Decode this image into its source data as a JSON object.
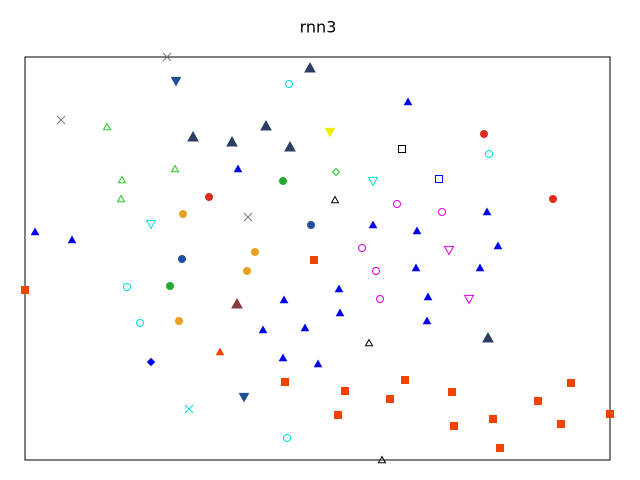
{
  "chart_data": {
    "type": "scatter",
    "title": "rnn3",
    "xlim": [
      0,
      585
    ],
    "ylim": [
      0,
      403
    ],
    "series": [
      {
        "color": "#777777",
        "marker": "x",
        "filled": false,
        "x": [
          142,
          36,
          223
        ],
        "y": [
          403,
          340,
          243
        ]
      },
      {
        "color": "#00dddd",
        "marker": "x",
        "filled": false,
        "x": [
          164
        ],
        "y": [
          51
        ]
      },
      {
        "color": "#2b3f63",
        "marker": "triangle-up",
        "filled": true,
        "x": [
          285,
          168,
          207,
          241,
          265,
          463
        ],
        "y": [
          392,
          323,
          318,
          334,
          313,
          122
        ]
      },
      {
        "color": "#1f4e9c",
        "marker": "triangle-down",
        "filled": true,
        "x": [
          151,
          219
        ],
        "y": [
          379,
          63
        ]
      },
      {
        "color": "#00dddd",
        "marker": "circle",
        "filled": false,
        "x": [
          264,
          464,
          102,
          115,
          262
        ],
        "y": [
          376,
          306,
          173,
          137,
          22
        ]
      },
      {
        "color": "#0000ee",
        "marker": "triangle-up-small",
        "filled": true,
        "x": [
          383,
          213,
          10,
          47,
          348,
          392,
          462,
          473,
          391,
          455,
          314,
          259,
          403,
          315,
          280,
          238,
          402,
          258,
          293
        ],
        "y": [
          358,
          291,
          228,
          220,
          235,
          229,
          248,
          214,
          192,
          192,
          171,
          160,
          163,
          147,
          132,
          130,
          139,
          102,
          96
        ]
      },
      {
        "color": "#22cc22",
        "marker": "triangle-up-small",
        "filled": false,
        "x": [
          82,
          150,
          97,
          96
        ],
        "y": [
          333,
          291,
          280,
          261
        ]
      },
      {
        "color": "#eeee00",
        "marker": "triangle-down",
        "filled": true,
        "x": [
          305
        ],
        "y": [
          328
        ]
      },
      {
        "color": "#000000",
        "marker": "square",
        "filled": false,
        "x": [
          377
        ],
        "y": [
          311
        ]
      },
      {
        "color": "#0000ee",
        "marker": "square",
        "filled": false,
        "x": [
          414
        ],
        "y": [
          281
        ]
      },
      {
        "color": "#dd2a1a",
        "marker": "circle",
        "filled": true,
        "x": [
          459,
          184,
          528
        ],
        "y": [
          326,
          263,
          261
        ]
      },
      {
        "color": "#22aa33",
        "marker": "circle",
        "filled": true,
        "x": [
          258,
          145
        ],
        "y": [
          279,
          174
        ]
      },
      {
        "color": "#22cc22",
        "marker": "diamond",
        "filled": false,
        "x": [
          311
        ],
        "y": [
          288
        ]
      },
      {
        "color": "#00dddd",
        "marker": "triangle-down",
        "filled": false,
        "x": [
          348,
          126
        ],
        "y": [
          279,
          236
        ]
      },
      {
        "color": "#000000",
        "marker": "triangle-up-small",
        "filled": false,
        "x": [
          310,
          344,
          357
        ],
        "y": [
          260,
          117,
          0
        ]
      },
      {
        "color": "#dd00dd",
        "marker": "circle",
        "filled": false,
        "x": [
          372,
          417,
          337,
          351,
          355
        ],
        "y": [
          256,
          248,
          212,
          189,
          161
        ]
      },
      {
        "color": "#dd00dd",
        "marker": "triangle-down",
        "filled": false,
        "x": [
          424,
          444
        ],
        "y": [
          210,
          161
        ]
      },
      {
        "color": "#e8a020",
        "marker": "circle",
        "filled": true,
        "x": [
          158,
          230,
          222,
          154
        ],
        "y": [
          246,
          208,
          189,
          139
        ]
      },
      {
        "color": "#1f4e9c",
        "marker": "circle",
        "filled": true,
        "x": [
          286,
          157
        ],
        "y": [
          235,
          201
        ]
      },
      {
        "color": "#ee4400",
        "marker": "square",
        "filled": true,
        "x": [
          289,
          0,
          260,
          320,
          380,
          365,
          427,
          313,
          429,
          468,
          475,
          513,
          546,
          536,
          585
        ],
        "y": [
          200,
          170,
          78,
          69,
          80,
          61,
          68,
          45,
          34,
          41,
          12,
          59,
          77,
          36,
          46
        ]
      },
      {
        "color": "#8b3a3a",
        "marker": "triangle-up",
        "filled": true,
        "x": [
          212
        ],
        "y": [
          156
        ]
      },
      {
        "color": "#ee4400",
        "marker": "triangle-up-small",
        "filled": true,
        "x": [
          195
        ],
        "y": [
          108
        ]
      },
      {
        "color": "#0000ee",
        "marker": "diamond",
        "filled": true,
        "x": [
          126
        ],
        "y": [
          98
        ]
      }
    ]
  }
}
